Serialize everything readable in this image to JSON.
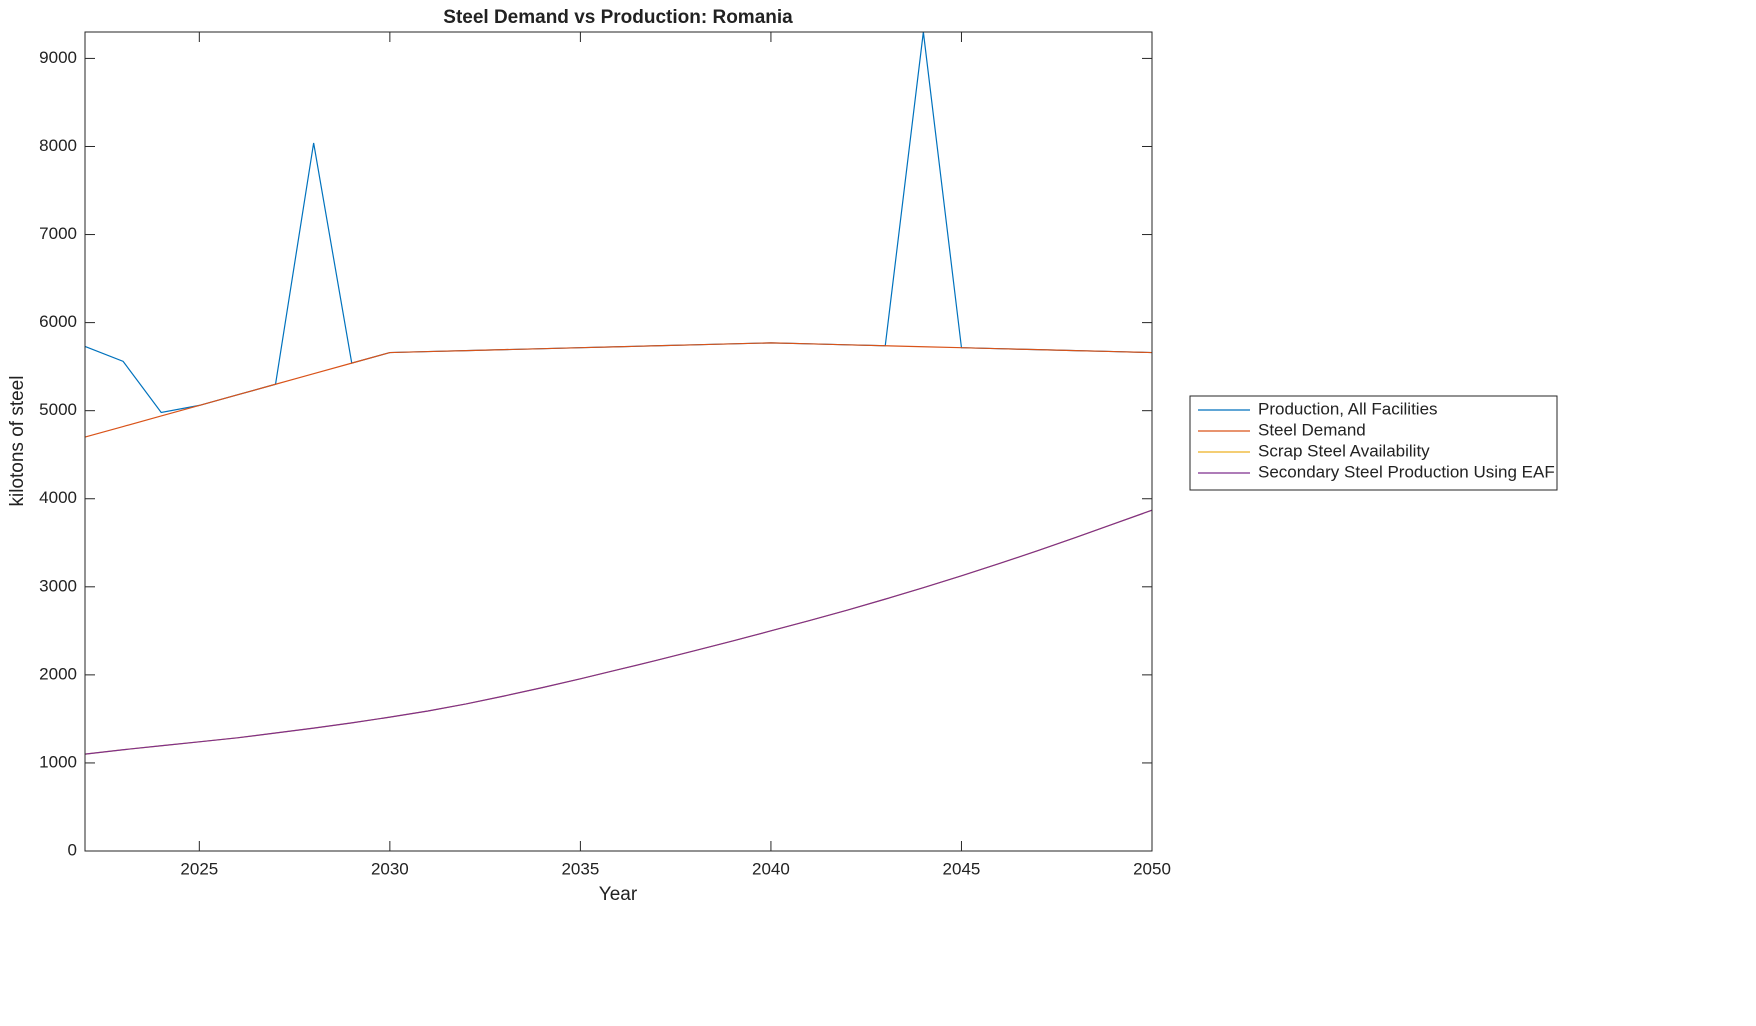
{
  "chart_data": {
    "type": "line",
    "title": "Steel Demand vs Production: Romania",
    "x_label": "Year",
    "y_label": "kilotons of steel",
    "x": [
      2022,
      2023,
      2024,
      2025,
      2026,
      2027,
      2028,
      2029,
      2030,
      2031,
      2032,
      2033,
      2034,
      2035,
      2036,
      2037,
      2038,
      2039,
      2040,
      2041,
      2042,
      2043,
      2044,
      2045,
      2046,
      2047,
      2048,
      2049,
      2050
    ],
    "series": [
      {
        "name": "Production, All Facilities",
        "color": "#0072BD",
        "values": [
          5730,
          5560,
          4980,
          5060,
          5180,
          5300,
          8040,
          5540,
          5660,
          5671,
          5682,
          5693,
          5704,
          5715,
          5726,
          5737,
          5748,
          5759,
          5770,
          5759,
          5748,
          5737,
          9300,
          5715,
          5704,
          5693,
          5682,
          5671,
          5660
        ]
      },
      {
        "name": "Steel Demand",
        "color": "#D95319",
        "values": [
          4700,
          4820,
          4940,
          5060,
          5180,
          5300,
          5420,
          5540,
          5660,
          5671,
          5682,
          5693,
          5704,
          5715,
          5726,
          5737,
          5748,
          5759,
          5770,
          5759,
          5748,
          5737,
          5726,
          5715,
          5704,
          5693,
          5682,
          5671,
          5660
        ]
      },
      {
        "name": "Scrap Steel Availability",
        "color": "#EDB120",
        "values": [
          1100,
          1150,
          1195,
          1240,
          1285,
          1340,
          1395,
          1455,
          1520,
          1590,
          1670,
          1760,
          1855,
          1955,
          2060,
          2165,
          2275,
          2385,
          2500,
          2615,
          2735,
          2860,
          2990,
          3125,
          3265,
          3410,
          3560,
          3715,
          3870
        ]
      },
      {
        "name": "Secondary Steel Production Using EAF",
        "color": "#7E2F8E",
        "values": [
          1100,
          1150,
          1195,
          1240,
          1285,
          1340,
          1395,
          1455,
          1520,
          1590,
          1670,
          1760,
          1855,
          1955,
          2060,
          2165,
          2275,
          2385,
          2500,
          2615,
          2735,
          2860,
          2990,
          3125,
          3265,
          3410,
          3560,
          3715,
          3870
        ]
      }
    ],
    "xlim": [
      2022,
      2050
    ],
    "xticks": [
      2025,
      2030,
      2035,
      2040,
      2045,
      2050
    ],
    "ylim": [
      0,
      9300
    ],
    "yticks": [
      0,
      1000,
      2000,
      3000,
      4000,
      5000,
      6000,
      7000,
      8000,
      9000
    ],
    "grid": false,
    "legend_position": "eastoutside"
  }
}
